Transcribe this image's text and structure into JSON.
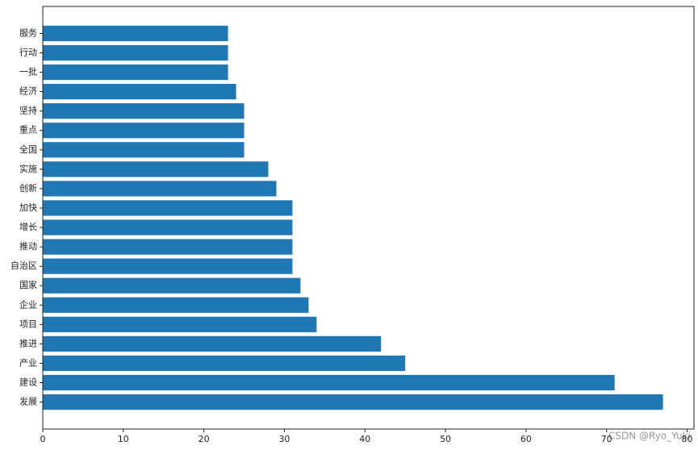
{
  "chart_data": {
    "type": "barh",
    "categories": [
      "发展",
      "建设",
      "产业",
      "推进",
      "项目",
      "企业",
      "国家",
      "自治区",
      "推动",
      "增长",
      "加快",
      "创新",
      "实施",
      "全国",
      "重点",
      "坚持",
      "经济",
      "一批",
      "行动",
      "服务"
    ],
    "values": [
      77,
      71,
      45,
      42,
      34,
      33,
      32,
      31,
      31,
      31,
      31,
      29,
      28,
      25,
      25,
      25,
      24,
      23,
      23,
      23
    ],
    "color": "#1f77b4",
    "xlim": [
      0,
      80.85
    ],
    "xticks": [
      0,
      10,
      20,
      30,
      40,
      50,
      60,
      70,
      80
    ],
    "watermark": "CSDN @Ryo_Yuki"
  }
}
